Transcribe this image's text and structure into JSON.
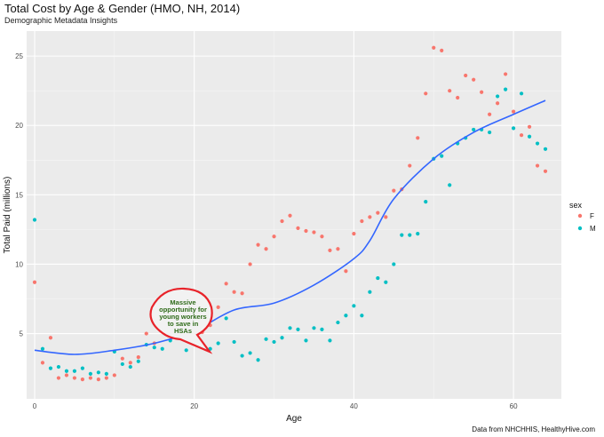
{
  "chart_data": {
    "type": "scatter",
    "title": "Total Cost by Age & Gender (HMO, NH, 2014)",
    "subtitle": "Demographic Metadata Insights",
    "xlabel": "Age",
    "ylabel": "Total Paid (millions)",
    "caption": "Data from NHCHHIS, HealthyHive.com",
    "xlim": [
      -1,
      66
    ],
    "ylim": [
      0.3,
      26.8
    ],
    "x_ticks": [
      0,
      20,
      40,
      60
    ],
    "y_ticks": [
      5,
      10,
      15,
      20,
      25
    ],
    "grid": true,
    "legend": {
      "title": "sex",
      "position": "right"
    },
    "series": [
      {
        "name": "F",
        "color": "#f8766d",
        "x": [
          0,
          1,
          2,
          3,
          4,
          5,
          6,
          7,
          8,
          9,
          10,
          11,
          12,
          13,
          14,
          15,
          16,
          17,
          18,
          19,
          20,
          21,
          22,
          23,
          24,
          25,
          26,
          27,
          28,
          29,
          30,
          31,
          32,
          33,
          34,
          35,
          36,
          37,
          38,
          39,
          40,
          41,
          42,
          43,
          44,
          45,
          46,
          47,
          48,
          49,
          50,
          51,
          52,
          53,
          54,
          55,
          56,
          57,
          58,
          59,
          60,
          61,
          62,
          63,
          64
        ],
        "y": [
          8.7,
          2.9,
          4.7,
          1.8,
          2.0,
          1.8,
          1.7,
          1.8,
          1.7,
          1.8,
          2.0,
          3.2,
          2.9,
          3.3,
          5.0,
          4.3,
          5.2,
          4.9,
          4.8,
          4.9,
          5.4,
          5.1,
          5.6,
          6.9,
          8.6,
          8.0,
          7.9,
          10.0,
          11.4,
          11.1,
          12.0,
          13.1,
          13.5,
          12.6,
          12.4,
          12.3,
          12.0,
          11.0,
          11.1,
          9.5,
          12.2,
          13.1,
          13.4,
          13.7,
          13.4,
          15.3,
          15.4,
          17.1,
          19.1,
          22.3,
          25.6,
          25.4,
          22.5,
          22.0,
          23.6,
          23.3,
          22.4,
          20.8,
          21.6,
          23.7,
          21.0,
          19.3,
          19.9,
          17.1,
          16.7
        ]
      },
      {
        "name": "M",
        "color": "#00bfc4",
        "x": [
          0,
          1,
          2,
          3,
          4,
          5,
          6,
          7,
          8,
          9,
          10,
          11,
          12,
          13,
          14,
          15,
          16,
          17,
          18,
          19,
          20,
          21,
          22,
          23,
          24,
          25,
          26,
          27,
          28,
          29,
          30,
          31,
          32,
          33,
          34,
          35,
          36,
          37,
          38,
          39,
          40,
          41,
          42,
          43,
          44,
          45,
          46,
          47,
          48,
          49,
          50,
          51,
          52,
          53,
          54,
          55,
          56,
          57,
          58,
          59,
          60,
          61,
          62,
          63,
          64
        ],
        "y": [
          13.2,
          3.9,
          2.5,
          2.6,
          2.3,
          2.3,
          2.5,
          2.1,
          2.2,
          2.1,
          3.7,
          2.8,
          2.6,
          3.0,
          4.2,
          4.0,
          3.9,
          4.5,
          5.0,
          3.8,
          4.5,
          4.1,
          3.9,
          4.3,
          6.1,
          4.4,
          3.4,
          3.6,
          3.1,
          4.6,
          4.4,
          4.7,
          5.4,
          5.3,
          4.5,
          5.4,
          5.3,
          4.5,
          5.8,
          6.3,
          7.0,
          6.3,
          8.0,
          9.0,
          8.7,
          10.0,
          12.1,
          12.1,
          12.2,
          14.5,
          17.6,
          17.8,
          15.7,
          18.7,
          19.1,
          19.7,
          19.7,
          19.5,
          22.1,
          22.6,
          19.8,
          22.3,
          19.2,
          18.7,
          18.3
        ]
      }
    ],
    "trend": {
      "name": "smooth",
      "color": "#3366ff",
      "x": [
        0,
        5,
        10,
        15,
        20,
        25,
        30,
        35,
        40,
        42,
        45,
        50,
        55,
        60,
        64
      ],
      "y": [
        3.8,
        3.5,
        3.8,
        4.3,
        5.2,
        6.7,
        7.2,
        8.5,
        10.4,
        11.7,
        14.7,
        17.6,
        19.5,
        20.8,
        21.8
      ]
    },
    "annotation": {
      "text": [
        "Massive",
        "opportunity for",
        "young workers",
        "to save in",
        "HSAs"
      ]
    }
  }
}
